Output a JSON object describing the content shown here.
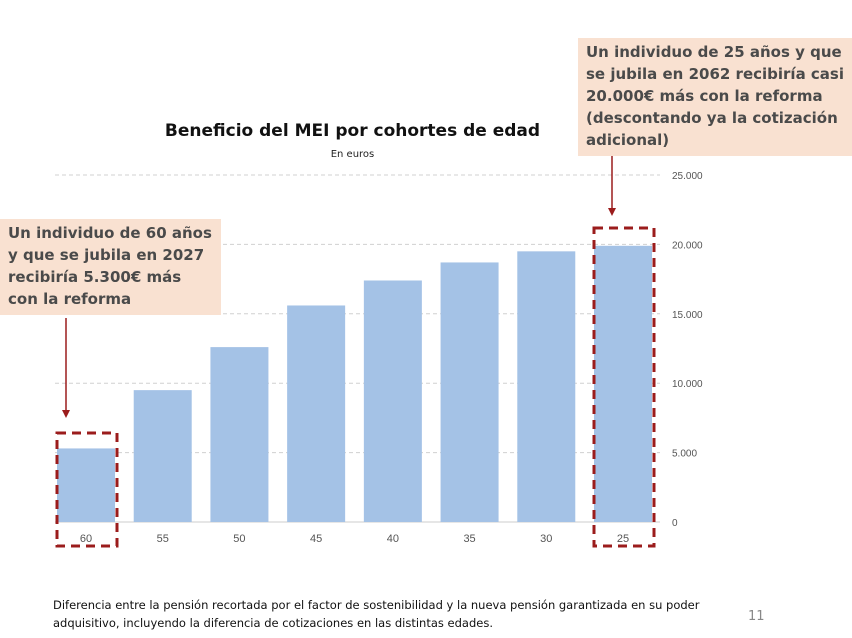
{
  "chart_data": {
    "type": "bar",
    "title": "Beneficio del MEI por cohortes de edad",
    "subtitle": "En euros",
    "categories": [
      "60",
      "55",
      "50",
      "45",
      "40",
      "35",
      "30",
      "25"
    ],
    "values": [
      5300,
      9500,
      12600,
      15600,
      17400,
      18700,
      19500,
      19900
    ],
    "ylim": [
      0,
      25000
    ],
    "yticks": [
      "0",
      "5.000",
      "10.000",
      "15.000",
      "20.000",
      "25.000"
    ],
    "ytick_values": [
      0,
      5000,
      10000,
      15000,
      20000,
      25000
    ],
    "y_axis_side": "right",
    "grid": true,
    "bar_color": "#a4c2e6",
    "highlight_color": "#9b1c1c",
    "highlighted_categories": [
      "60",
      "25"
    ]
  },
  "callouts": {
    "left": "Un individuo de 60 años y que se jubila en 2027 recibiría 5.300€ más con la reforma",
    "right": "Un individuo de 25 años y que se jubila en 2062 recibiría casi 20.000€ más con la reforma (descontando ya la cotización adicional)"
  },
  "footnote": "Diferencia entre la pensión recortada por el factor de sostenibilidad y la nueva pensión garantizada en su poder adquisitivo, incluyendo la diferencia de cotizaciones en las distintas edades.",
  "page_number": "11"
}
